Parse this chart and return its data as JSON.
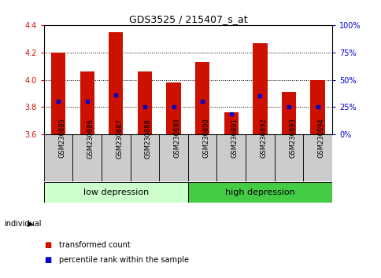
{
  "title": "GDS3525 / 215407_s_at",
  "samples": [
    "GSM230885",
    "GSM230886",
    "GSM230887",
    "GSM230888",
    "GSM230889",
    "GSM230890",
    "GSM230891",
    "GSM230892",
    "GSM230893",
    "GSM230894"
  ],
  "bar_tops": [
    4.2,
    4.06,
    4.35,
    4.06,
    3.98,
    4.13,
    3.76,
    4.27,
    3.91,
    4.0
  ],
  "blue_dots": [
    3.84,
    3.84,
    3.89,
    3.8,
    3.8,
    3.84,
    3.75,
    3.88,
    3.8,
    3.8
  ],
  "bar_bottom": 3.6,
  "ylim": [
    3.6,
    4.4
  ],
  "y_ticks": [
    3.6,
    3.8,
    4.0,
    4.2,
    4.4
  ],
  "right_ticks": [
    0,
    25,
    50,
    75,
    100
  ],
  "right_tick_positions": [
    3.6,
    3.8,
    4.0,
    4.2,
    4.4
  ],
  "bar_color": "#cc1100",
  "dot_color": "#0000cc",
  "group1": {
    "label": "low depression",
    "indices": [
      0,
      1,
      2,
      3,
      4
    ],
    "color": "#ccffcc"
  },
  "group2": {
    "label": "high depression",
    "indices": [
      5,
      6,
      7,
      8,
      9
    ],
    "color": "#44cc44"
  },
  "individual_label": "individual",
  "legend_items": [
    {
      "label": "transformed count",
      "color": "#cc1100"
    },
    {
      "label": "percentile rank within the sample",
      "color": "#0000cc"
    }
  ],
  "axis_label_color_left": "#cc1100",
  "axis_label_color_right": "#0000cc",
  "bg_color": "#ffffff",
  "sample_box_color": "#cccccc",
  "title_fontsize": 9,
  "tick_fontsize": 7,
  "legend_fontsize": 7
}
